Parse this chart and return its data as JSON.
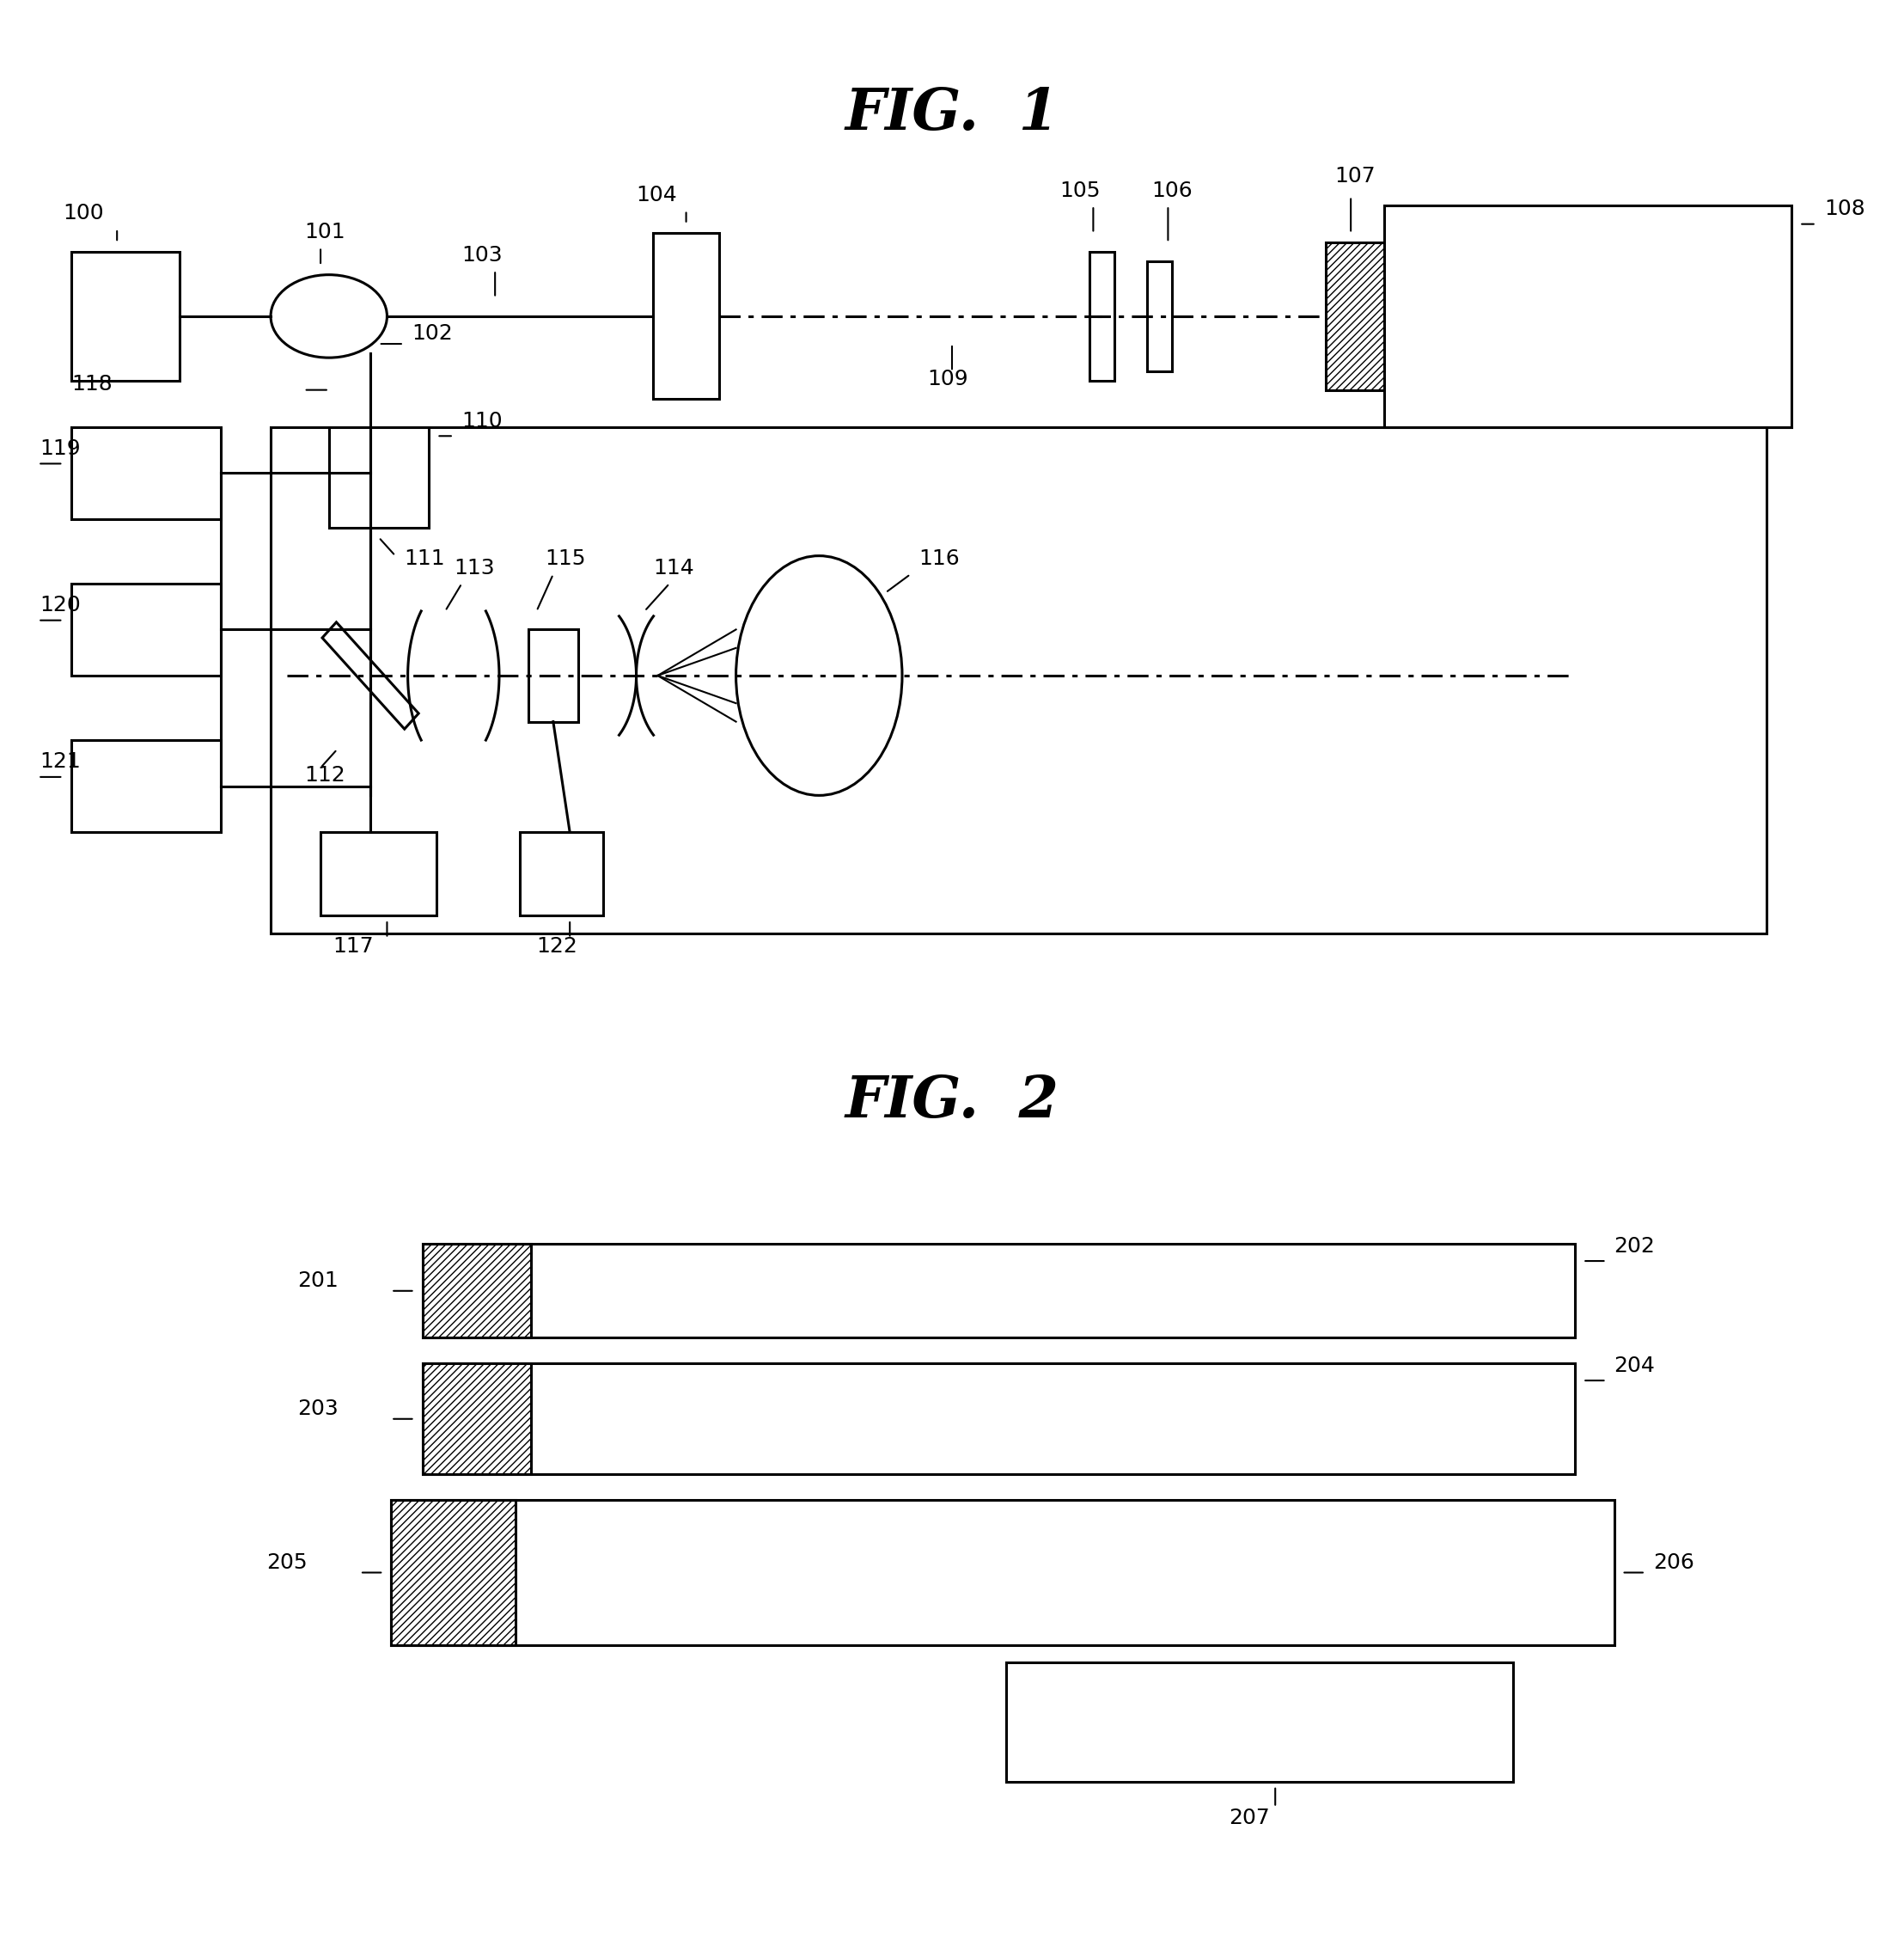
{
  "fig1_title": "FIG.  1",
  "fig2_title": "FIG.  2",
  "bg_color": "#ffffff",
  "line_color": "#000000",
  "lw": 2.2,
  "lw_thin": 1.5,
  "fs_label": 18,
  "fs_title": 48
}
